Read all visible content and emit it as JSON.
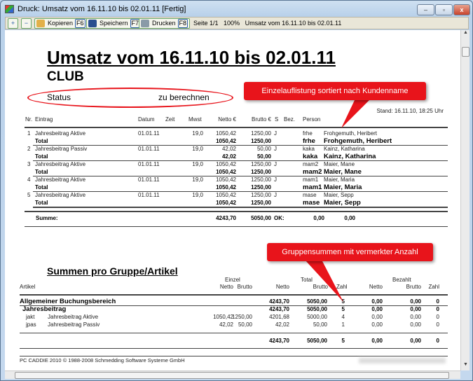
{
  "window": {
    "title": "Druck: Umsatz vom 16.11.10 bis 02.01.11 [Fertig]",
    "min": "–",
    "max": "▫",
    "close": "x"
  },
  "toolbar": {
    "zoom_in": "+",
    "zoom_out": "−",
    "copy": "Kopieren",
    "copy_key": "F6",
    "save": "Speichern",
    "save_key": "F7",
    "print": "Drucken",
    "print_key": "F8",
    "page": "Seite 1/1",
    "zoom": "100%",
    "doc": "Umsatz vom 16.11.10 bis 02.01.11"
  },
  "report": {
    "title": "Umsatz vom 16.11.10 bis 02.01.11",
    "club": "CLUB",
    "status_label": "Status",
    "status_value": "zu berechnen",
    "stand": "Stand: 16.11.10, 18:25 Uhr",
    "headers": {
      "nr": "Nr.",
      "eintrag": "Eintrag",
      "datum": "Datum",
      "zeit": "Zeit",
      "mwst": "Mwst",
      "netto": "Netto €",
      "brutto": "Brutto €",
      "s": "S",
      "bez": "Bez.",
      "person": "Person"
    },
    "entries": [
      {
        "nr": "1",
        "eintrag": "Jahresbeitrag Aktive",
        "datum": "01.01.11",
        "mwst": "19,0",
        "netto": "1050,42",
        "brutto": "1250,00",
        "s": "J",
        "code": "frhe",
        "person": "Frohgemuth, Heribert",
        "total_label": "Total",
        "total_netto": "1050,42",
        "total_brutto": "1250,00"
      },
      {
        "nr": "2",
        "eintrag": "Jahresbeitrag Passiv",
        "datum": "01.01.11",
        "mwst": "19,0",
        "netto": "42,02",
        "brutto": "50,00",
        "s": "J",
        "code": "kaka",
        "person": "Kainz, Katharina",
        "total_label": "Total",
        "total_netto": "42,02",
        "total_brutto": "50,00"
      },
      {
        "nr": "3",
        "eintrag": "Jahresbeitrag Aktive",
        "datum": "01.01.11",
        "mwst": "19,0",
        "netto": "1050,42",
        "brutto": "1250,00",
        "s": "J",
        "code": "mam2",
        "person": "Maier, Mane",
        "total_label": "Total",
        "total_netto": "1050,42",
        "total_brutto": "1250,00"
      },
      {
        "nr": "4",
        "eintrag": "Jahresbeitrag Aktive",
        "datum": "01.01.11",
        "mwst": "19,0",
        "netto": "1050,42",
        "brutto": "1250,00",
        "s": "J",
        "code": "mam1",
        "person": "Maier, Maria",
        "total_label": "Total",
        "total_netto": "1050,42",
        "total_brutto": "1250,00"
      },
      {
        "nr": "5",
        "eintrag": "Jahresbeitrag Aktive",
        "datum": "01.01.11",
        "mwst": "19,0",
        "netto": "1050,42",
        "brutto": "1250,00",
        "s": "J",
        "code": "mase",
        "person": "Maier, Sepp",
        "total_label": "Total",
        "total_netto": "1050,42",
        "total_brutto": "1250,00"
      }
    ],
    "summe": {
      "label": "Summe:",
      "netto": "4243,70",
      "brutto": "5050,00",
      "ok": "OK:",
      "v1": "0,00",
      "v2": "0,00"
    },
    "group_title": "Summen pro Gruppe/Artikel",
    "group_headers": {
      "einzel": "Einzel",
      "total": "Total",
      "bezahlt": "Bezahlt",
      "artikel": "Artikel",
      "netto": "Netto",
      "brutto": "Brutto",
      "zahl": "Zahl"
    },
    "group_rows": [
      {
        "code": "Allgemeiner Buchungsbereich",
        "name": "",
        "e_netto": "",
        "e_brutto": "",
        "t_netto": "4243,70",
        "t_brutto": "5050,00",
        "t_zahl": "5",
        "b_netto": "0,00",
        "b_brutto": "0,00",
        "b_zahl": "0",
        "level": "area"
      },
      {
        "code": "Jahresbeitrag",
        "name": "",
        "e_netto": "",
        "e_brutto": "",
        "t_netto": "4243,70",
        "t_brutto": "5050,00",
        "t_zahl": "5",
        "b_netto": "0,00",
        "b_brutto": "0,00",
        "b_zahl": "0",
        "level": "group"
      },
      {
        "code": "jakt",
        "name": "Jahresbeitrag Aktive",
        "e_netto": "1050,42",
        "e_brutto": "1250,00",
        "t_netto": "4201,68",
        "t_brutto": "5000,00",
        "t_zahl": "4",
        "b_netto": "0,00",
        "b_brutto": "0,00",
        "b_zahl": "0",
        "level": "item"
      },
      {
        "code": "jpas",
        "name": "Jahresbeitrag Passiv",
        "e_netto": "42,02",
        "e_brutto": "50,00",
        "t_netto": "42,02",
        "t_brutto": "50,00",
        "t_zahl": "1",
        "b_netto": "0,00",
        "b_brutto": "0,00",
        "b_zahl": "0",
        "level": "item"
      }
    ],
    "group_total": {
      "t_netto": "4243,70",
      "t_brutto": "5050,00",
      "t_zahl": "5",
      "b_netto": "0,00",
      "b_brutto": "0,00",
      "b_zahl": "0"
    },
    "footer": "PC CADDIE 2010  © 1988-2008 Schmedding Software Systeme GmbH"
  },
  "annotations": {
    "callout1": "Einzelauflistung sortiert nach Kundenname",
    "callout2": "Gruppensummen mit vermerkter Anzahl",
    "color": "#e8141b"
  }
}
